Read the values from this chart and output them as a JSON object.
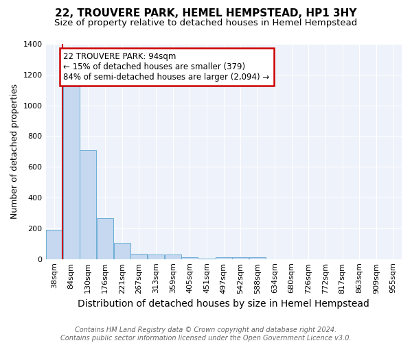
{
  "title": "22, TROUVERE PARK, HEMEL HEMPSTEAD, HP1 3HY",
  "subtitle": "Size of property relative to detached houses in Hemel Hempstead",
  "xlabel": "Distribution of detached houses by size in Hemel Hempstead",
  "ylabel": "Number of detached properties",
  "categories": [
    "38sqm",
    "84sqm",
    "130sqm",
    "176sqm",
    "221sqm",
    "267sqm",
    "313sqm",
    "359sqm",
    "405sqm",
    "451sqm",
    "497sqm",
    "542sqm",
    "588sqm",
    "634sqm",
    "680sqm",
    "726sqm",
    "772sqm",
    "817sqm",
    "863sqm",
    "909sqm",
    "955sqm"
  ],
  "values": [
    190,
    1140,
    710,
    265,
    107,
    35,
    28,
    28,
    12,
    5,
    12,
    12,
    12,
    0,
    0,
    0,
    0,
    0,
    0,
    0,
    0
  ],
  "bar_color": "#c5d8f0",
  "bar_edge_color": "#6aaed6",
  "property_line_color": "#cc0000",
  "annotation_text": "22 TROUVERE PARK: 94sqm\n← 15% of detached houses are smaller (379)\n84% of semi-detached houses are larger (2,094) →",
  "annotation_box_color": "#ffffff",
  "annotation_box_edge_color": "#cc0000",
  "ylim": [
    0,
    1400
  ],
  "yticks": [
    0,
    200,
    400,
    600,
    800,
    1000,
    1200,
    1400
  ],
  "footer_line1": "Contains HM Land Registry data © Crown copyright and database right 2024.",
  "footer_line2": "Contains public sector information licensed under the Open Government Licence v3.0.",
  "background_color": "#ffffff",
  "plot_background_color": "#eef2fa",
  "title_fontsize": 11,
  "subtitle_fontsize": 9.5,
  "xlabel_fontsize": 10,
  "ylabel_fontsize": 9,
  "footer_fontsize": 7,
  "tick_fontsize": 8
}
